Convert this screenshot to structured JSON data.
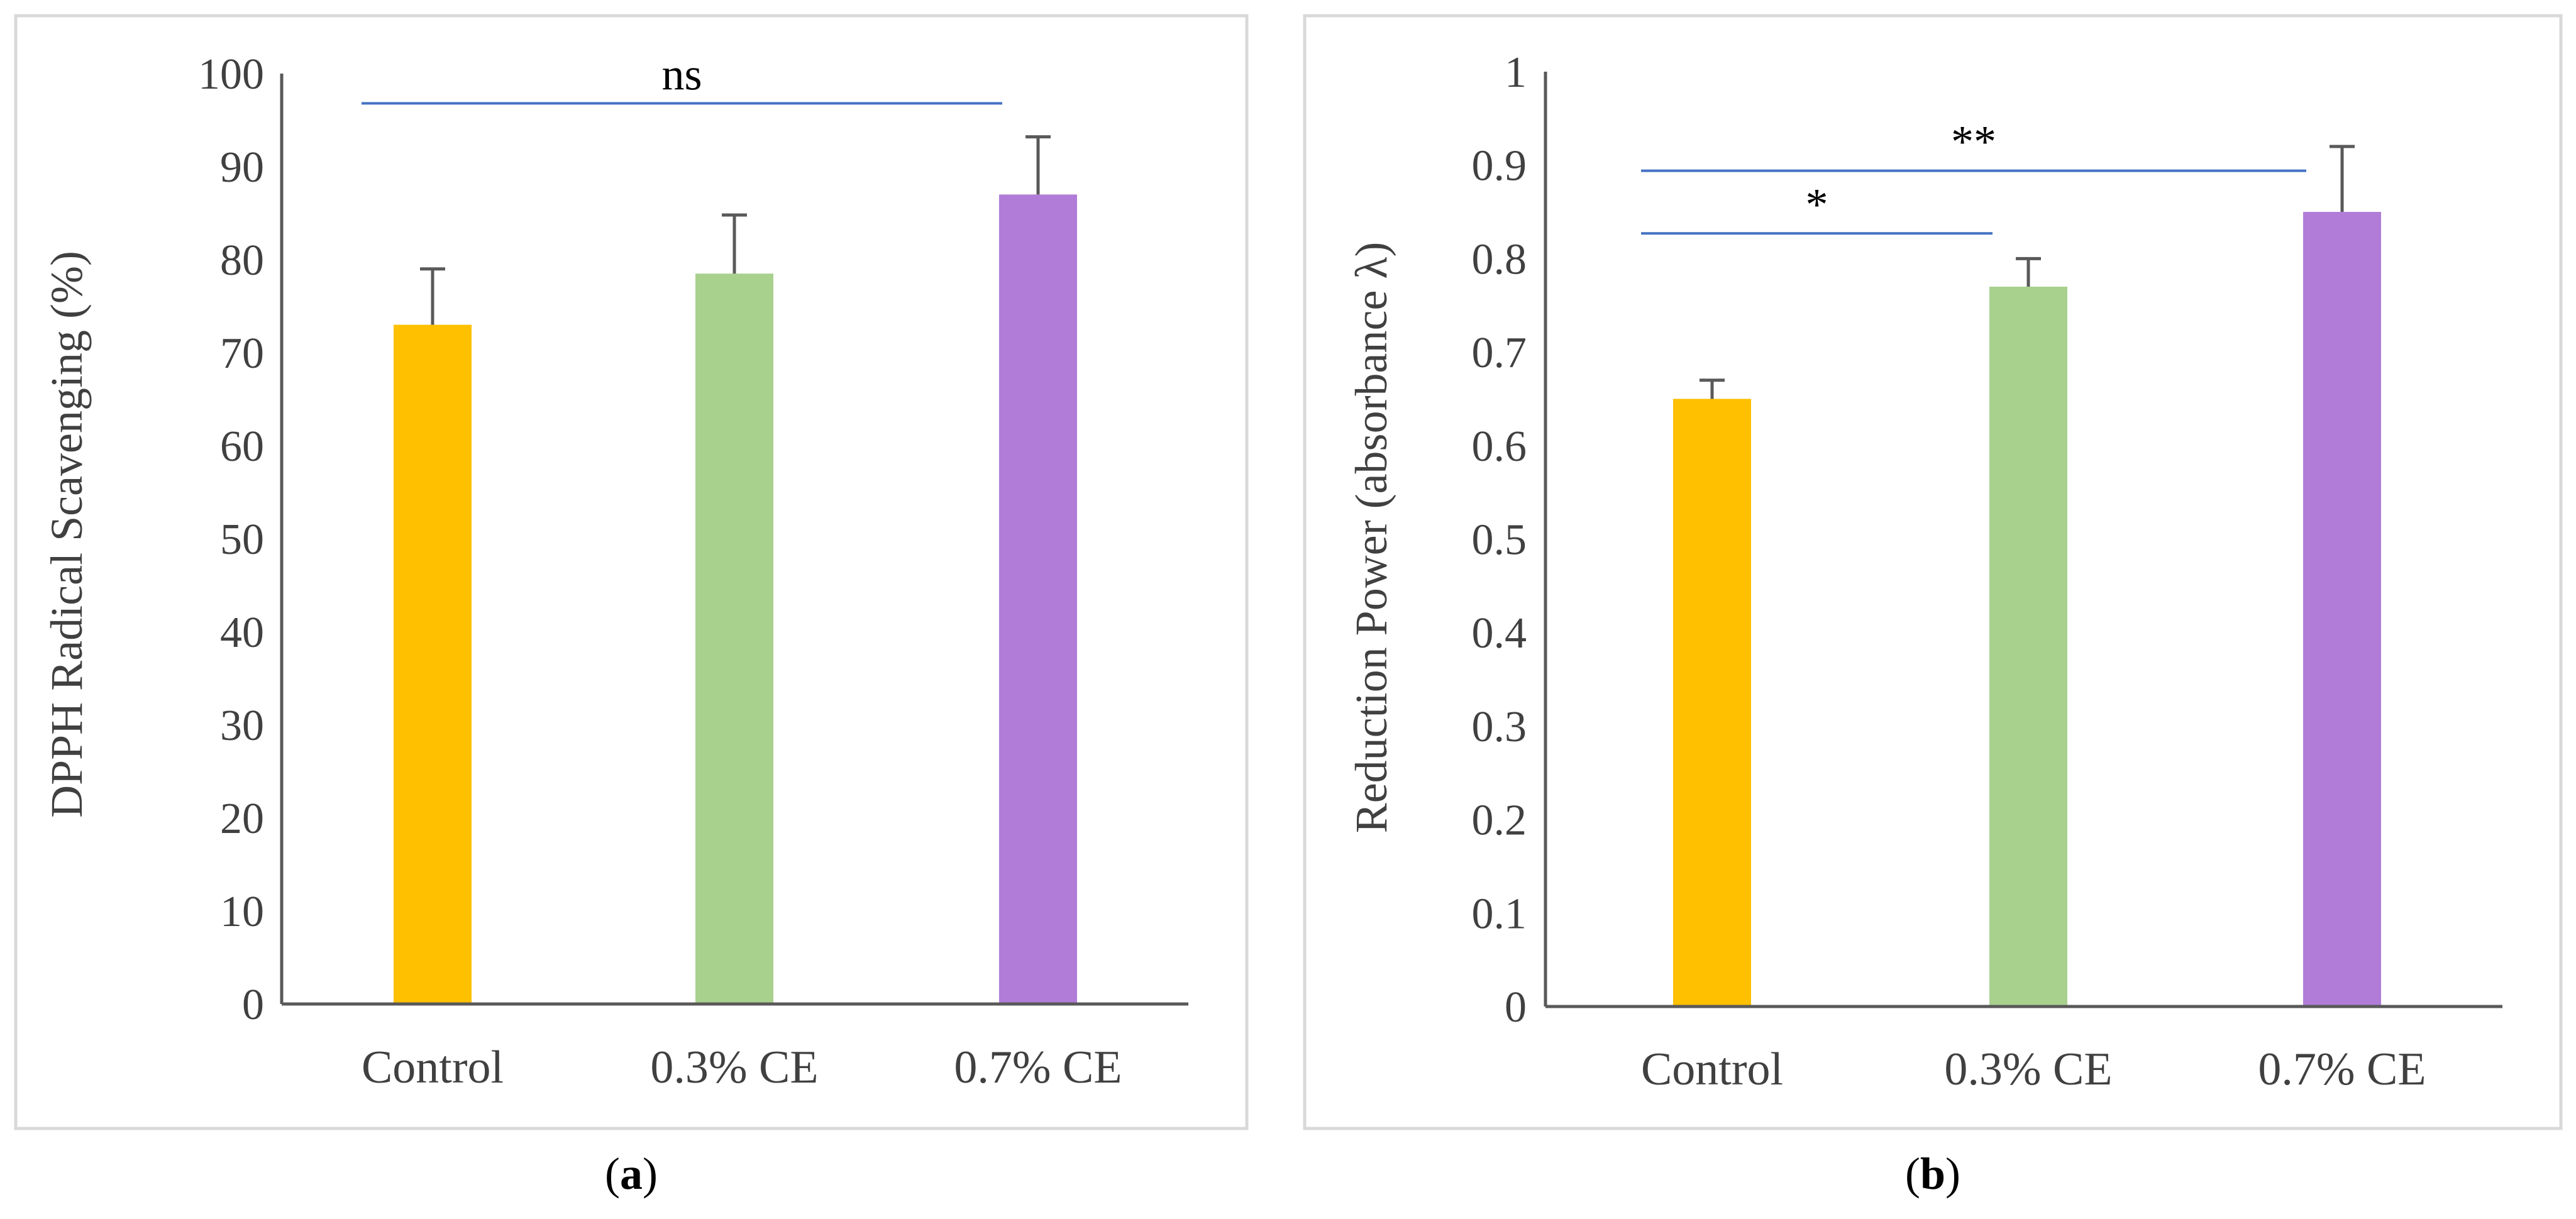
{
  "colors": {
    "control": "#FFC000",
    "ce03": "#A9D18E",
    "ce07": "#B07CD8",
    "significance_line": "#4472C4",
    "axis": "#595959",
    "text": "#404040",
    "frame": "#D9D9D9"
  },
  "chart_data": [
    {
      "type": "bar",
      "panel_label": "a",
      "categories": [
        "Control",
        "0.3% CE",
        "0.7% CE"
      ],
      "values": [
        73,
        78.5,
        87
      ],
      "errors": [
        6,
        6.3,
        6.2
      ],
      "ylabel": "DPPH Radical Scavenging (%)",
      "xlabel": "",
      "ylim": [
        0,
        100
      ],
      "yticks": [
        0,
        10,
        20,
        30,
        40,
        50,
        60,
        70,
        80,
        90,
        100
      ],
      "tick_labels": [
        "0",
        "10",
        "20",
        "30",
        "40",
        "50",
        "60",
        "70",
        "80",
        "90",
        "100"
      ],
      "tick_decimals": 0,
      "significance": [
        {
          "from": 0,
          "to": 2,
          "level": 96.8,
          "label": "ns"
        }
      ]
    },
    {
      "type": "bar",
      "panel_label": "b",
      "categories": [
        "Control",
        "0.3% CE",
        "0.7% CE"
      ],
      "values": [
        0.65,
        0.77,
        0.85
      ],
      "errors": [
        0.02,
        0.03,
        0.07
      ],
      "ylabel": "Reduction Power (absorbance λ)",
      "xlabel": "",
      "ylim": [
        0,
        1
      ],
      "yticks": [
        0,
        0.1,
        0.2,
        0.3,
        0.4,
        0.5,
        0.6,
        0.7,
        0.8,
        0.9,
        1
      ],
      "tick_labels": [
        "0",
        "0.1",
        "0.2",
        "0.3",
        "0.4",
        "0.5",
        "0.6",
        "0.7",
        "0.8",
        "0.9",
        "1"
      ],
      "tick_decimals": 1,
      "significance": [
        {
          "from": 0,
          "to": 1,
          "level": 0.827,
          "label": "*"
        },
        {
          "from": 0,
          "to": 2,
          "level": 0.894,
          "label": "**"
        }
      ]
    }
  ]
}
